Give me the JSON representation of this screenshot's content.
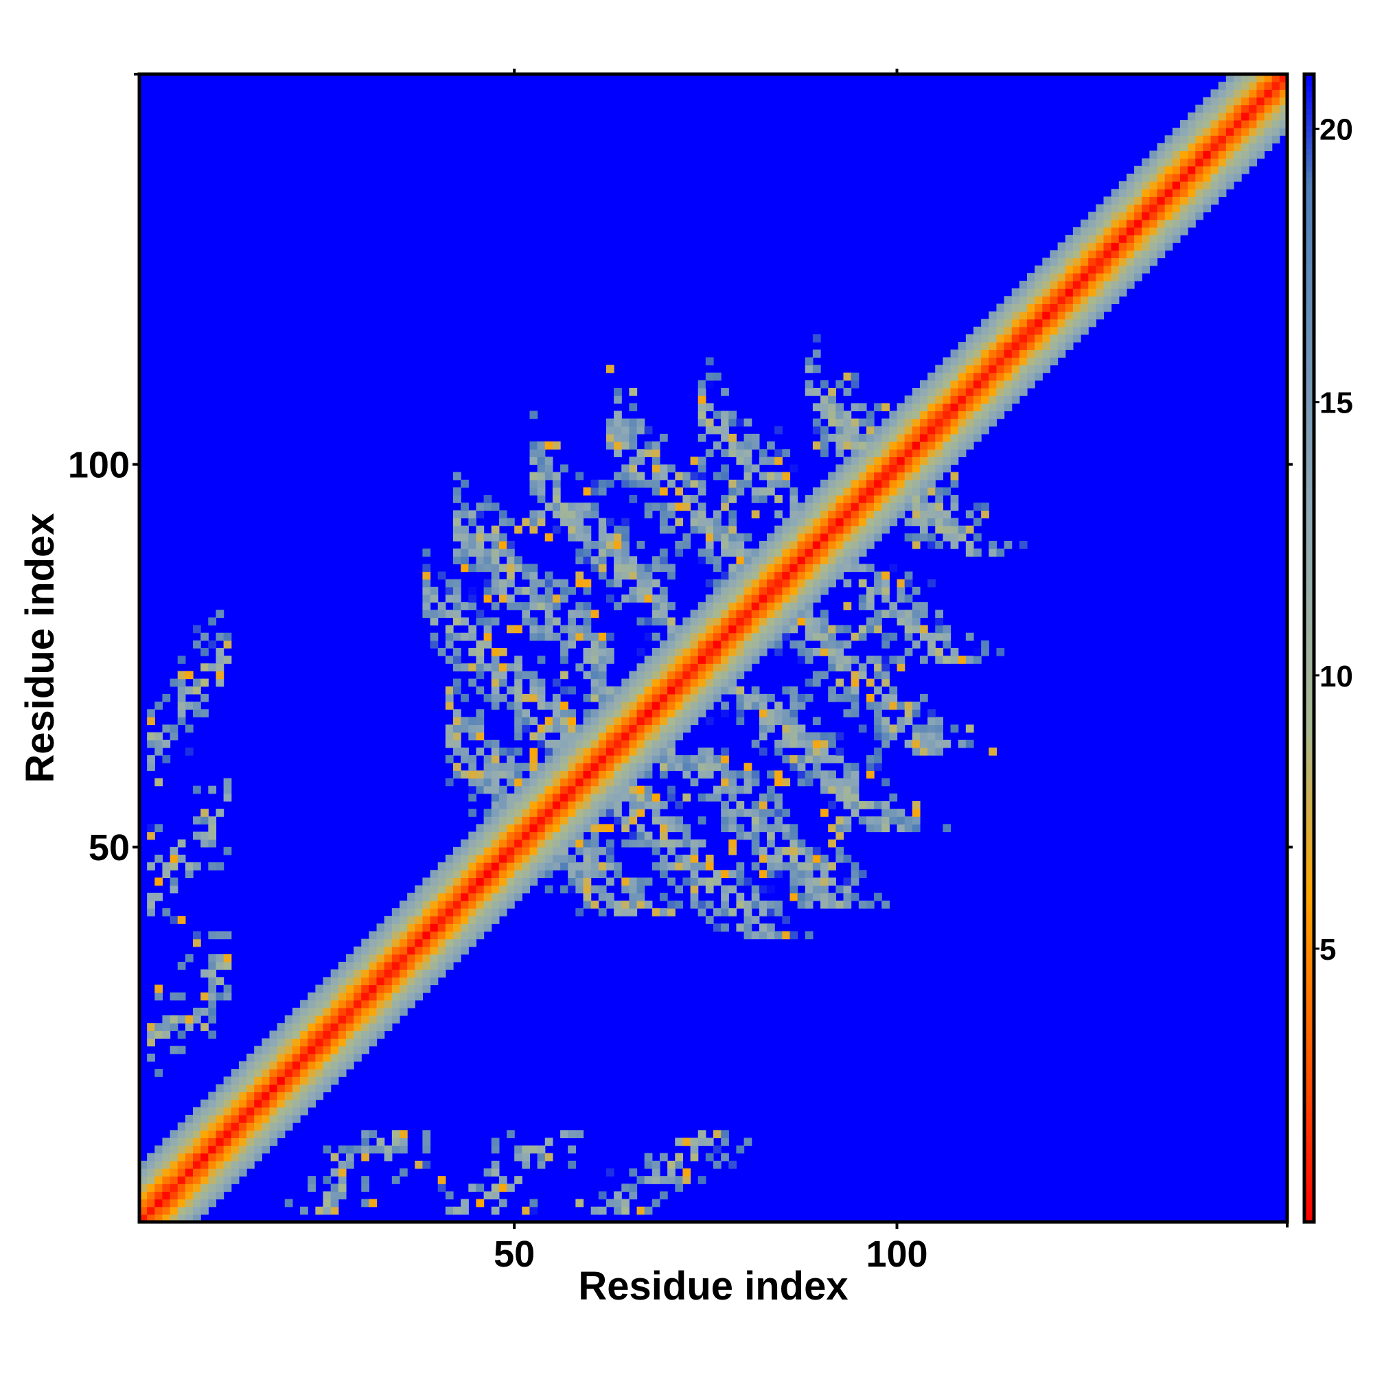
{
  "chart_data": {
    "type": "heatmap",
    "title": "",
    "xlabel": "Residue index",
    "ylabel": "Residue index",
    "n_residues": 150,
    "xlim": [
      1,
      151
    ],
    "ylim": [
      1,
      151
    ],
    "x_ticks": [
      50,
      100
    ],
    "y_ticks": [
      50,
      100
    ],
    "value_range": [
      0,
      21
    ],
    "colorbar": {
      "ticks": [
        5,
        10,
        15,
        20
      ],
      "placement": "right",
      "colors": [
        "#ff0000",
        "#ff5a00",
        "#ffa500",
        "#a8b890",
        "#8fa9b6",
        "#4f7eb8",
        "#0000ff"
      ],
      "stops": [
        0,
        3,
        6,
        9,
        13,
        19,
        21
      ]
    },
    "background_color": "#0000ff",
    "grid": false,
    "structure": {
      "diagonal_band_half_width": 7,
      "beta_sheets": [
        {
          "anti": true,
          "sum": 106,
          "i_range": [
            41,
            53
          ],
          "strength": 0.8
        },
        {
          "anti": true,
          "sum": 120,
          "i_range": [
            38,
            57
          ],
          "strength": 0.75
        },
        {
          "anti": true,
          "sum": 134,
          "i_range": [
            42,
            62
          ],
          "strength": 0.85
        },
        {
          "anti": true,
          "sum": 150,
          "i_range": [
            52,
            70
          ],
          "strength": 0.85
        },
        {
          "anti": true,
          "sum": 166,
          "i_range": [
            62,
            80
          ],
          "strength": 0.8
        },
        {
          "anti": true,
          "sum": 180,
          "i_range": [
            74,
            86
          ],
          "strength": 0.7
        },
        {
          "anti": true,
          "sum": 197,
          "i_range": [
            88,
            99
          ],
          "strength": 0.65
        },
        {
          "anti": false,
          "diff": 22,
          "i_range": [
            2,
            12
          ],
          "strength": 0.55
        },
        {
          "anti": false,
          "diff": 42,
          "i_range": [
            2,
            12
          ],
          "strength": 0.45
        },
        {
          "anti": false,
          "diff": 62,
          "i_range": [
            2,
            12
          ],
          "strength": 0.5
        }
      ]
    }
  }
}
